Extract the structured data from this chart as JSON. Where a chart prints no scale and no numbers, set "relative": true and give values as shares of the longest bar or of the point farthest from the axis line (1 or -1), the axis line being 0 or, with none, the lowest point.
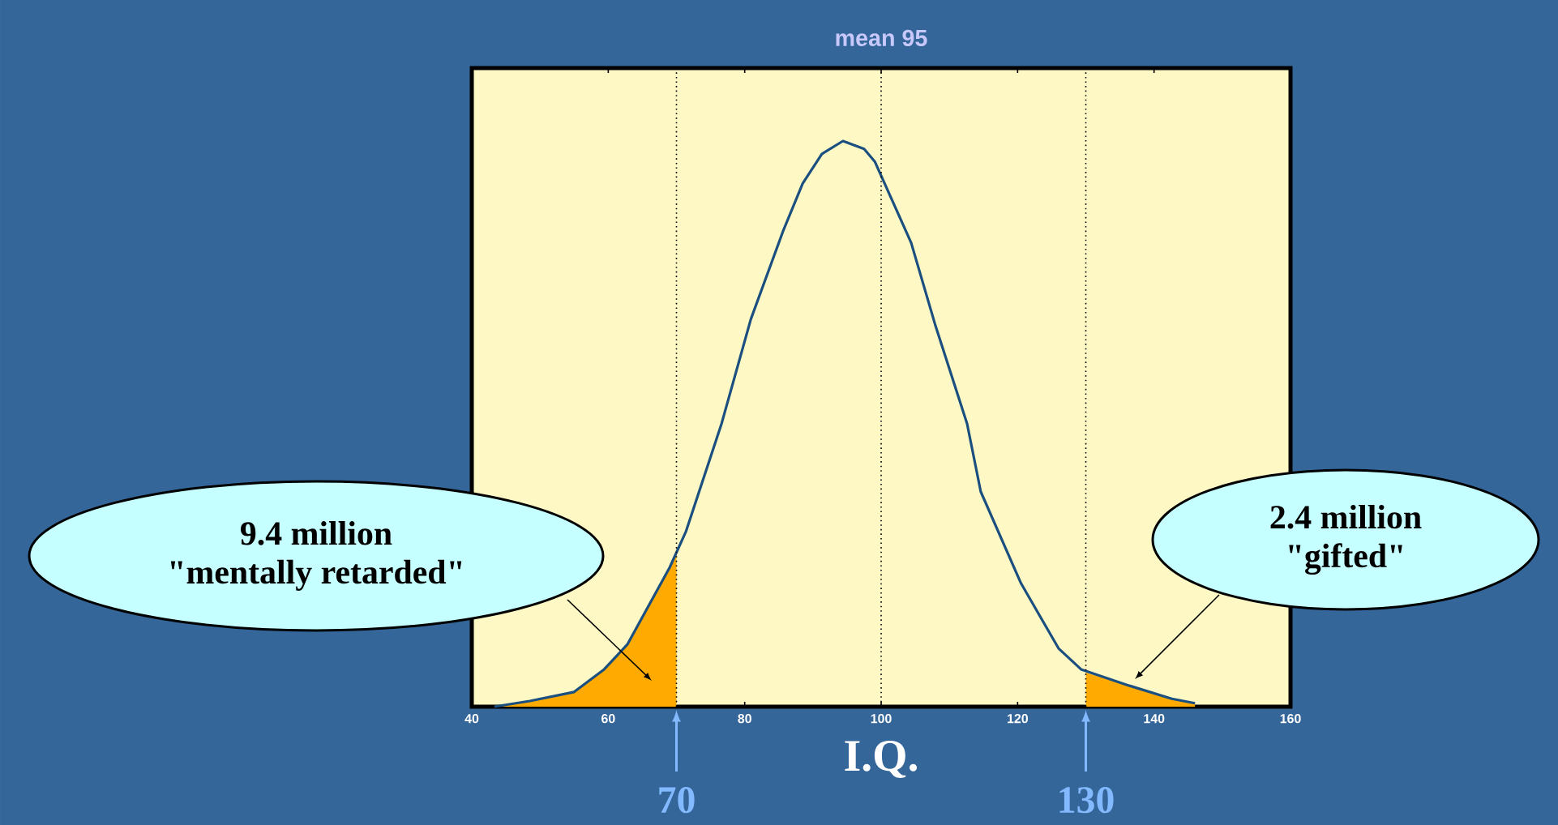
{
  "chart_data": {
    "type": "line",
    "title": "mean 95",
    "xlabel": "I.Q.",
    "relative": true,
    "xlim": [
      40,
      160
    ],
    "xticks": [
      40,
      60,
      80,
      100,
      120,
      140,
      160
    ],
    "grid": false,
    "marker": "none",
    "line_style": "solid",
    "series": [
      {
        "type": "area",
        "color": "#ffaa00",
        "x": [
          43.3,
          48.5,
          55,
          59.4,
          62.8,
          69,
          70
        ],
        "values": [
          0,
          0.01,
          0.026,
          0.066,
          0.11,
          0.246,
          0.27
        ]
      },
      {
        "type": "area",
        "color": "#ffaa00",
        "x": [
          130,
          136.4,
          142.6,
          146
        ],
        "values": [
          0.06,
          0.037,
          0.014,
          0.006
        ]
      },
      {
        "color": "#1a4f80",
        "x": [
          43.3,
          48.5,
          55,
          59.4,
          62.8,
          69,
          71.4,
          76.6,
          80.9,
          85.6,
          88.5,
          91.3,
          94.4,
          97.5,
          99.1,
          104.4,
          107.9,
          112.6,
          114.6,
          120.5,
          126,
          129.3,
          136.4,
          142.6,
          146
        ],
        "values": [
          0,
          0.01,
          0.026,
          0.066,
          0.11,
          0.246,
          0.31,
          0.5,
          0.685,
          0.84,
          0.925,
          0.977,
          1,
          0.986,
          0.963,
          0.82,
          0.676,
          0.5,
          0.38,
          0.218,
          0.103,
          0.066,
          0.037,
          0.014,
          0.006
        ]
      }
    ],
    "ref_lines": [
      {
        "axis": "x",
        "value": 70,
        "label": "70",
        "line_style": "dotted",
        "color": "#000000"
      },
      {
        "axis": "x",
        "value": 100,
        "line_style": "dotted",
        "color": "#000000"
      },
      {
        "axis": "x",
        "value": 130,
        "label": "130",
        "line_style": "dotted",
        "color": "#000000"
      }
    ],
    "annotations": [
      "9.4 million",
      "\"mentally retarded\"",
      "2.4 million",
      "\"gifted\""
    ]
  }
}
